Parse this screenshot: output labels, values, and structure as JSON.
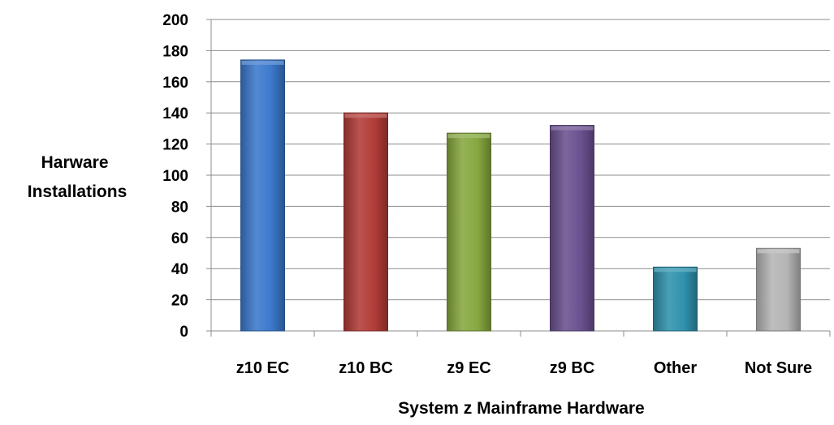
{
  "chart_data": {
    "type": "bar",
    "title": "",
    "xlabel": "System z Mainframe Hardware",
    "ylabel_lines": [
      "Harware",
      "Installations"
    ],
    "ylim": [
      0,
      200
    ],
    "yticks": [
      0,
      20,
      40,
      60,
      80,
      100,
      120,
      140,
      160,
      180,
      200
    ],
    "grid": true,
    "legend": "none",
    "categories": [
      "z10 EC",
      "z10 BC",
      "z9 EC",
      "z9 BC",
      "Other",
      "Not Sure"
    ],
    "values": [
      174,
      140,
      127,
      132,
      41,
      53
    ],
    "colors": [
      "#3b79cc",
      "#b23c38",
      "#86a83f",
      "#6a5190",
      "#2f92ad",
      "#b5b5b5"
    ]
  }
}
